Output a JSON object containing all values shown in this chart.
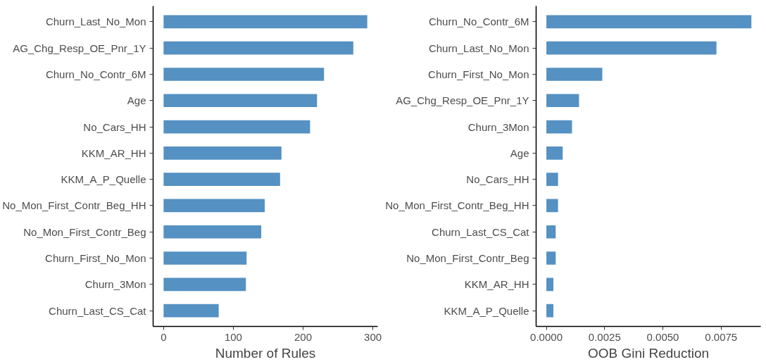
{
  "chart_data": [
    {
      "type": "bar",
      "orientation": "horizontal",
      "xlabel": "Number of Rules",
      "categories": [
        "Churn_Last_No_Mon",
        "AG_Chg_Resp_OE_Pnr_1Y",
        "Churn_No_Contr_6M",
        "Age",
        "No_Cars_HH",
        "KKM_AR_HH",
        "KKM_A_P_Quelle",
        "No_Mon_First_Contr_Beg_HH",
        "No_Mon_First_Contr_Beg",
        "Churn_First_No_Mon",
        "Churn_3Mon",
        "Churn_Last_CS_Cat"
      ],
      "values": [
        292,
        272,
        230,
        220,
        210,
        169,
        167,
        145,
        140,
        119,
        118,
        79
      ],
      "color": "#5591c2",
      "xlim": [
        -15,
        307
      ],
      "xticks": [
        0,
        100,
        200,
        300
      ],
      "grid": false
    },
    {
      "type": "bar",
      "orientation": "horizontal",
      "xlabel": "OOB Gini Reduction",
      "categories": [
        "Churn_No_Contr_6M",
        "Churn_Last_No_Mon",
        "Churn_First_No_Mon",
        "AG_Chg_Resp_OE_Pnr_1Y",
        "Churn_3Mon",
        "Age",
        "No_Cars_HH",
        "No_Mon_First_Contr_Beg_HH",
        "Churn_Last_CS_Cat",
        "No_Mon_First_Contr_Beg",
        "KKM_AR_HH",
        "KKM_A_P_Quelle"
      ],
      "values": [
        0.0088,
        0.0073,
        0.0024,
        0.0014,
        0.0011,
        0.0007,
        0.0005,
        0.0005,
        0.0004,
        0.0004,
        0.0003,
        0.0003
      ],
      "color": "#5591c2",
      "xlim": [
        -0.00044,
        0.0092
      ],
      "xticks": [
        {
          "value": 0,
          "label": "0.0000"
        },
        {
          "value": 0.0025,
          "label": "0.0025"
        },
        {
          "value": 0.005,
          "label": "0.0050"
        },
        {
          "value": 0.0075,
          "label": "0.0075"
        }
      ],
      "grid": false
    }
  ]
}
